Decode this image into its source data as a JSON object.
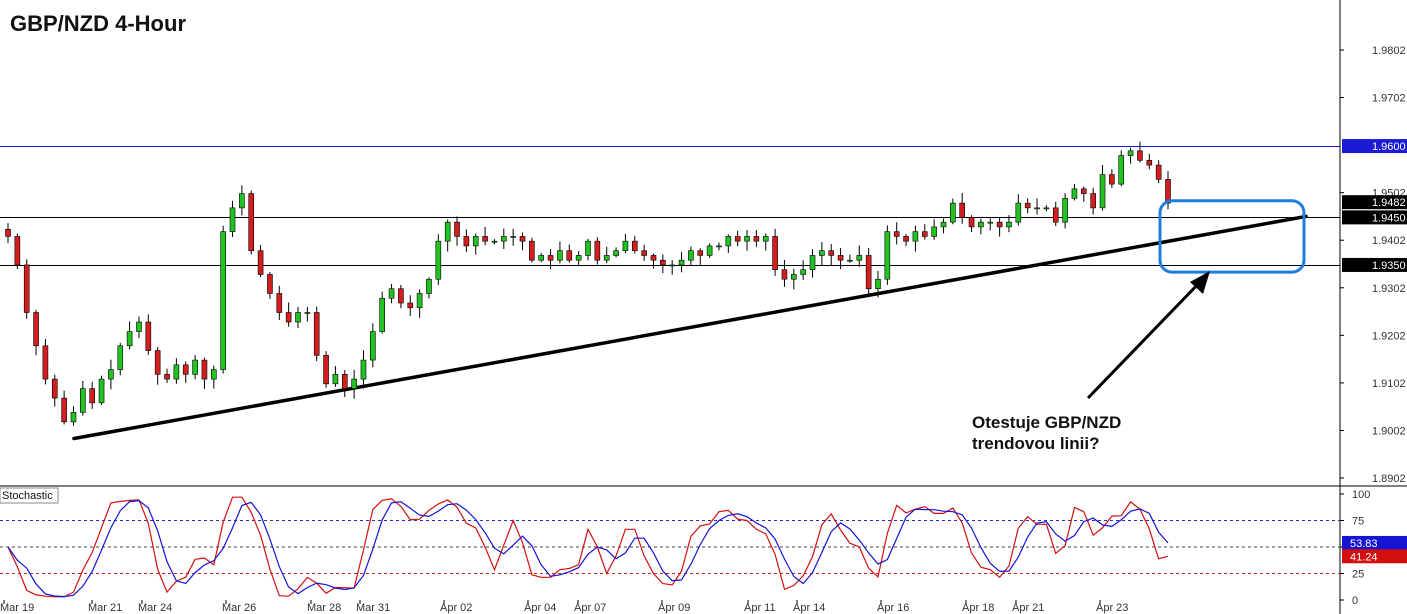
{
  "chart_data": {
    "type": "candlestick",
    "title": "GBP/NZD 4-Hour",
    "price_axis": {
      "ylim": [
        1.887,
        1.985
      ],
      "ticks": [
        "1.9802",
        "1.9702",
        "1.9502",
        "1.9402",
        "1.9302",
        "1.9202",
        "1.9102",
        "1.9002",
        "1.8902"
      ]
    },
    "horizontal_levels": [
      {
        "label": "1.9600",
        "value": 1.96,
        "color": "#1b1bd6"
      },
      {
        "label": "1.9450",
        "value": 1.945,
        "color": "#000000"
      },
      {
        "label": "1.9350",
        "value": 1.935,
        "color": "#000000"
      }
    ],
    "current_price": {
      "label": "1.9482",
      "value": 1.9482
    },
    "x_labels": [
      "Mar 19",
      "Mar 21",
      "Mar 24",
      "Mar 26",
      "Mar 28",
      "Mar 31",
      "Apr 02",
      "Apr 04",
      "Apr 07",
      "Apr 09",
      "Apr 11",
      "Apr 14",
      "Apr 16",
      "Apr 18",
      "Apr 21",
      "Apr 23"
    ],
    "trendline": {
      "start": [
        "Mar 19",
        1.8985
      ],
      "end": [
        "Apr 24",
        1.9452
      ]
    },
    "close_series": [
      1.941,
      1.935,
      1.925,
      1.918,
      1.911,
      1.907,
      1.902,
      1.904,
      1.909,
      1.906,
      1.911,
      1.913,
      1.918,
      1.921,
      1.923,
      1.917,
      1.912,
      1.911,
      1.914,
      1.912,
      1.915,
      1.911,
      1.913,
      1.942,
      1.947,
      1.95,
      1.938,
      1.933,
      1.929,
      1.925,
      1.923,
      1.925,
      1.925,
      1.916,
      1.91,
      1.912,
      1.909,
      1.911,
      1.915,
      1.921,
      1.928,
      1.93,
      1.927,
      1.926,
      1.929,
      1.932,
      1.94,
      1.944,
      1.941,
      1.939,
      1.941,
      1.94,
      1.94,
      1.941,
      1.941,
      1.94,
      1.936,
      1.937,
      1.936,
      1.938,
      1.936,
      1.937,
      1.94,
      1.936,
      1.937,
      1.938,
      1.94,
      1.938,
      1.937,
      1.936,
      1.935,
      1.935,
      1.936,
      1.938,
      1.937,
      1.939,
      1.939,
      1.941,
      1.94,
      1.941,
      1.94,
      1.941,
      1.934,
      1.932,
      1.933,
      1.934,
      1.937,
      1.938,
      1.937,
      1.936,
      1.936,
      1.937,
      1.93,
      1.932,
      1.942,
      1.941,
      1.94,
      1.942,
      1.941,
      1.943,
      1.944,
      1.948,
      1.945,
      1.943,
      1.944,
      1.944,
      1.943,
      1.944,
      1.948,
      1.947,
      1.947,
      1.947,
      1.944,
      1.949,
      1.951,
      1.95,
      1.947,
      1.954,
      1.952,
      1.958,
      1.959,
      1.957,
      1.956,
      1.953,
      1.948
    ],
    "stochastic": {
      "label": "Stochastic",
      "ylim": [
        0,
        100
      ],
      "ticks": [
        "100",
        "75",
        "50",
        "25",
        "0"
      ],
      "levels": [
        75,
        50,
        25
      ],
      "main_line": {
        "label": "53.83",
        "value": 53.83,
        "color": "#1414d2"
      },
      "signal_line": {
        "label": "41.24",
        "value": 41.24,
        "color": "#d20f0f"
      }
    },
    "annotation": {
      "lines": [
        "Otestuje GBP/NZD",
        "trendovou linii?"
      ]
    }
  },
  "colors": {
    "bull": "#21c321",
    "bear": "#d21e1e",
    "badge_blue": "#1b1bd6",
    "grid": "#000000"
  }
}
